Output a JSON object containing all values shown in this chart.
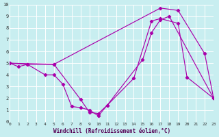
{
  "xlabel": "Windchill (Refroidissement éolien,°C)",
  "bg_color": "#c8eef0",
  "grid_color": "#ffffff",
  "line_color": "#aa00aa",
  "xlim": [
    0,
    23
  ],
  "ylim": [
    0,
    10
  ],
  "xticks": [
    0,
    1,
    2,
    3,
    4,
    5,
    6,
    7,
    8,
    9,
    10,
    11,
    12,
    13,
    14,
    15,
    16,
    17,
    18,
    19,
    20,
    21,
    22,
    23
  ],
  "yticks": [
    0,
    1,
    2,
    3,
    4,
    5,
    6,
    7,
    8,
    9,
    10
  ],
  "line1": {
    "x": [
      0,
      2,
      5,
      17,
      19,
      22,
      23
    ],
    "y": [
      5.0,
      4.9,
      4.9,
      9.7,
      9.5,
      5.8,
      2.0
    ]
  },
  "line2": {
    "x": [
      0,
      5,
      8,
      9,
      10,
      11,
      15,
      16,
      17,
      18,
      23
    ],
    "y": [
      5.0,
      4.9,
      1.9,
      0.8,
      0.7,
      1.4,
      5.3,
      7.6,
      8.7,
      9.0,
      2.0
    ]
  },
  "line3": {
    "x": [
      0,
      1,
      2,
      4,
      5,
      6,
      7,
      8,
      9,
      10,
      11,
      14,
      16,
      17,
      19,
      20,
      23
    ],
    "y": [
      5.0,
      4.7,
      4.9,
      4.0,
      4.0,
      3.2,
      1.3,
      1.2,
      1.0,
      0.5,
      1.4,
      3.7,
      8.6,
      8.8,
      8.4,
      3.8,
      2.0
    ]
  }
}
